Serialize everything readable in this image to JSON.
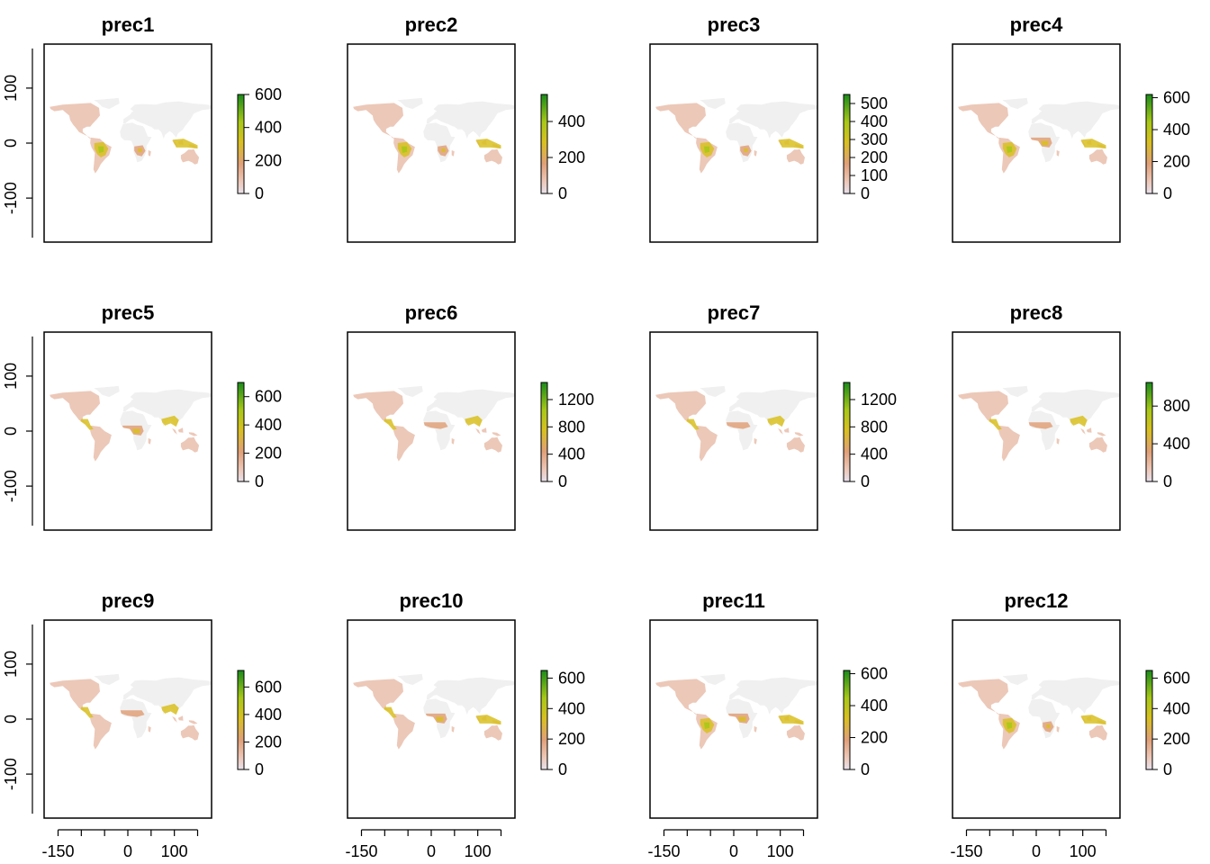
{
  "chart_data": {
    "type": "heatmap",
    "layout": {
      "rows": 3,
      "cols": 4
    },
    "colors": {
      "scale": [
        "#f0f0f0",
        "#ecc8b8",
        "#e0a078",
        "#d8c020",
        "#a8c818",
        "#1a8c1a"
      ],
      "ocean": "#ffffff"
    },
    "x_axis": {
      "ticks": [
        -150,
        0,
        100
      ],
      "minor_ticks": [
        -150,
        -100,
        -50,
        0,
        50,
        100,
        150
      ],
      "range": [
        -180,
        180
      ],
      "shown_on_row": 3
    },
    "y_axis": {
      "ticks": [
        100,
        0,
        -100
      ],
      "range": [
        -180,
        180
      ],
      "shown_on_col": 1
    },
    "panels": [
      {
        "title": "prec1",
        "legend_max": 600,
        "legend_ticks": [
          0,
          200,
          400,
          600
        ],
        "wet_regions": [
          "south-america",
          "southern-africa",
          "maritime-asia"
        ]
      },
      {
        "title": "prec2",
        "legend_max": 550,
        "legend_ticks": [
          0,
          200,
          400
        ],
        "wet_regions": [
          "south-america",
          "southern-africa",
          "maritime-asia"
        ]
      },
      {
        "title": "prec3",
        "legend_max": 550,
        "legend_ticks": [
          0,
          100,
          200,
          300,
          400,
          500
        ],
        "wet_regions": [
          "south-america",
          "southern-africa",
          "maritime-asia"
        ]
      },
      {
        "title": "prec4",
        "legend_max": 620,
        "legend_ticks": [
          0,
          200,
          400,
          600
        ],
        "wet_regions": [
          "south-america",
          "africa-equator",
          "maritime-asia"
        ]
      },
      {
        "title": "prec5",
        "legend_max": 700,
        "legend_ticks": [
          0,
          200,
          400,
          600
        ],
        "wet_regions": [
          "central-america",
          "africa-equator",
          "south-asia"
        ]
      },
      {
        "title": "prec6",
        "legend_max": 1450,
        "legend_ticks": [
          0,
          400,
          800,
          1200
        ],
        "wet_regions": [
          "central-america",
          "africa-sahel",
          "south-asia"
        ]
      },
      {
        "title": "prec7",
        "legend_max": 1450,
        "legend_ticks": [
          0,
          400,
          800,
          1200
        ],
        "wet_regions": [
          "central-america",
          "africa-sahel",
          "south-asia"
        ]
      },
      {
        "title": "prec8",
        "legend_max": 1050,
        "legend_ticks": [
          0,
          400,
          800
        ],
        "wet_regions": [
          "central-america",
          "africa-sahel",
          "south-asia"
        ]
      },
      {
        "title": "prec9",
        "legend_max": 720,
        "legend_ticks": [
          0,
          200,
          400,
          600
        ],
        "wet_regions": [
          "central-america",
          "africa-sahel",
          "south-asia"
        ]
      },
      {
        "title": "prec10",
        "legend_max": 650,
        "legend_ticks": [
          0,
          200,
          400,
          600
        ],
        "wet_regions": [
          "central-america",
          "africa-equator",
          "maritime-asia"
        ]
      },
      {
        "title": "prec11",
        "legend_max": 620,
        "legend_ticks": [
          0,
          200,
          400,
          600
        ],
        "wet_regions": [
          "south-america",
          "africa-equator",
          "maritime-asia"
        ]
      },
      {
        "title": "prec12",
        "legend_max": 650,
        "legend_ticks": [
          0,
          200,
          400,
          600
        ],
        "wet_regions": [
          "south-america",
          "southern-africa",
          "maritime-asia"
        ]
      }
    ]
  }
}
